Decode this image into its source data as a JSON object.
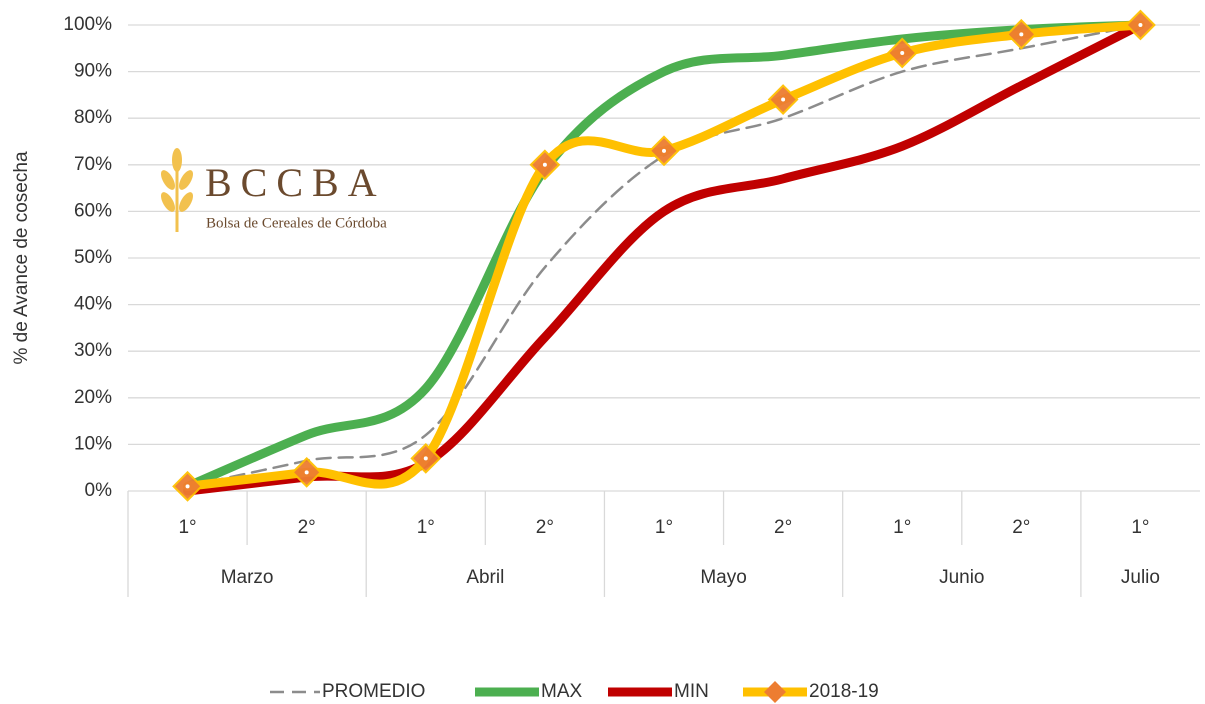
{
  "chart_data": {
    "type": "line",
    "y_axis_label": "% de Avance de cosecha",
    "categories": [
      "1°",
      "2°",
      "1°",
      "2°",
      "1°",
      "2°",
      "1°",
      "2°",
      "1°"
    ],
    "category_groups": [
      "Marzo",
      "Marzo",
      "Abril",
      "Abril",
      "Mayo",
      "Mayo",
      "Junio",
      "Junio",
      "Julio"
    ],
    "ylim": [
      0,
      100
    ],
    "yticks": [
      {
        "value": 0,
        "label": "0%"
      },
      {
        "value": 10,
        "label": "10%"
      },
      {
        "value": 20,
        "label": "20%"
      },
      {
        "value": 30,
        "label": "30%"
      },
      {
        "value": 40,
        "label": "40%"
      },
      {
        "value": 50,
        "label": "50%"
      },
      {
        "value": 60,
        "label": "60%"
      },
      {
        "value": 70,
        "label": "70%"
      },
      {
        "value": 80,
        "label": "80%"
      },
      {
        "value": 90,
        "label": "90%"
      },
      {
        "value": 100,
        "label": "100%"
      }
    ],
    "grid": true,
    "smooth": true,
    "legend": "bottom",
    "series": [
      {
        "name": "PROMEDIO",
        "color": "#8c8c8c",
        "dashed": true,
        "values": [
          1,
          6.5,
          12,
          48,
          72,
          80,
          90,
          95,
          100
        ]
      },
      {
        "name": "MAX",
        "color": "#4CAF50",
        "values": [
          1,
          12,
          22,
          69,
          90,
          93.5,
          97,
          99,
          100
        ]
      },
      {
        "name": "MIN",
        "color": "#C00000",
        "values": [
          0,
          3,
          6,
          33,
          60,
          67,
          74,
          87,
          100
        ]
      },
      {
        "name": "2018-19",
        "color": "#FFC000",
        "marker": "diamond",
        "marker_color": "#ED7D31",
        "values": [
          1,
          4,
          7,
          70,
          73,
          84,
          94,
          98,
          100
        ]
      }
    ],
    "logo": {
      "title": "BCCBA",
      "subtitle": "Bolsa de Cereales de Córdoba"
    }
  }
}
